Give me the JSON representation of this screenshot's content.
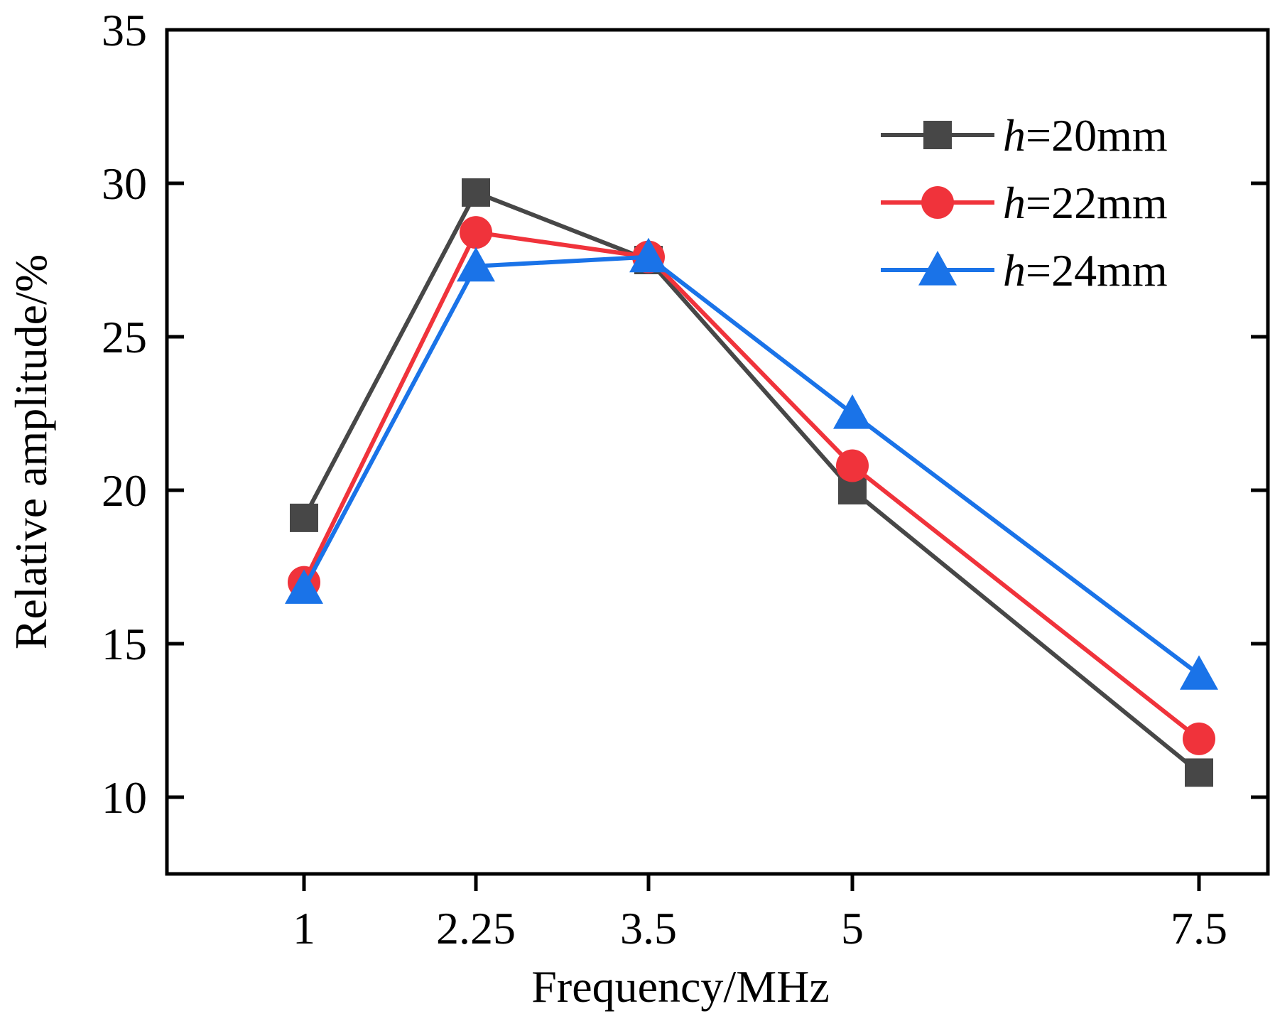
{
  "chart_data": {
    "type": "line",
    "xlabel": "Frequency/MHz",
    "ylabel": "Relative amplitude/%",
    "categories": [
      "1",
      "2.25",
      "3.5",
      "5",
      "7.5"
    ],
    "x": [
      1,
      2.25,
      3.5,
      5,
      7.5
    ],
    "ylim": [
      7.5,
      35
    ],
    "yticks": [
      "10",
      "15",
      "20",
      "25",
      "30",
      "35"
    ],
    "ytick_values": [
      10,
      15,
      20,
      25,
      30,
      35
    ],
    "grid": false,
    "legend_position": "top-right",
    "series": [
      {
        "name": "h=20mm",
        "name_prefix": "h",
        "name_suffix": "=20mm",
        "color": "#474747",
        "marker": "square",
        "values": [
          19.1,
          29.7,
          27.5,
          20.0,
          10.8
        ]
      },
      {
        "name": "h=22mm",
        "name_prefix": "h",
        "name_suffix": "=22mm",
        "color": "#f0333b",
        "marker": "circle",
        "values": [
          17.0,
          28.4,
          27.6,
          20.8,
          11.9
        ]
      },
      {
        "name": "h=24mm",
        "name_prefix": "h",
        "name_suffix": "=24mm",
        "color": "#1a73e8",
        "marker": "triangle",
        "values": [
          16.8,
          27.3,
          27.6,
          22.5,
          14.0
        ]
      }
    ]
  }
}
